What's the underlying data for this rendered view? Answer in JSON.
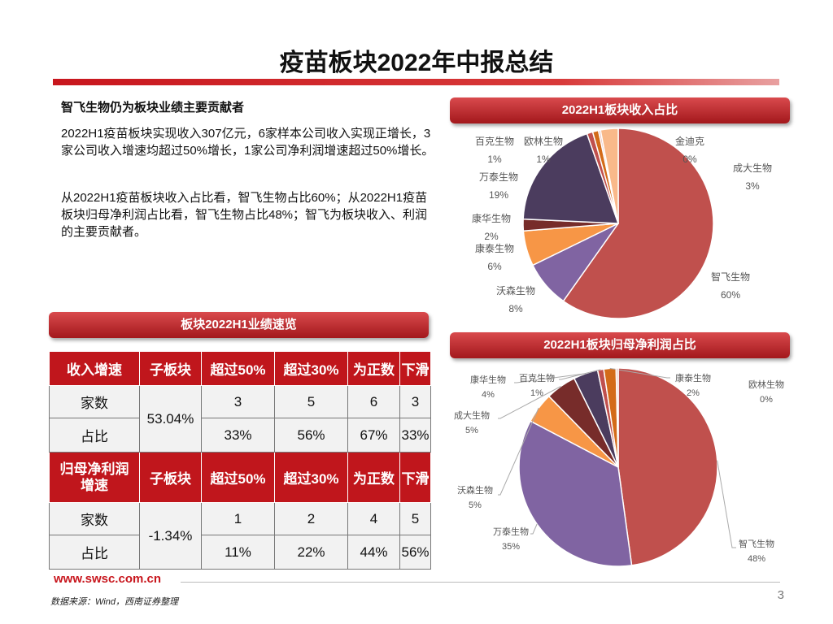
{
  "page": {
    "title": "疫苗板块2022年中报总结",
    "left_heading": "智飞生物仍为板块业绩主要贡献者",
    "paragraph1": "2022H1疫苗板块实现收入307亿元，6家样本公司收入实现正增长，3家公司收入增速均超过50%增长，1家公司净利润增速超过50%增长。",
    "paragraph2": "从2022H1疫苗板块收入占比看，智飞生物占比60%；从2022H1疫苗板块归母净利润占比看，智飞生物占比48%；智飞为板块收入、利润的主要贡献者。",
    "website": "www.swsc.com.cn",
    "source": "数据来源：Wind，西南证券整理",
    "page_number": "3"
  },
  "performance_table": {
    "title": "板块2022H1业绩速览",
    "revenue_header": [
      "收入增速",
      "子板块",
      "超过50%",
      "超过30%",
      "为正数",
      "下滑"
    ],
    "revenue_subboard": "53.04%",
    "revenue_rows": [
      {
        "label": "家数",
        "values": [
          "3",
          "5",
          "6",
          "3"
        ]
      },
      {
        "label": "占比",
        "values": [
          "33%",
          "56%",
          "67%",
          "33%"
        ]
      }
    ],
    "profit_header": [
      "归母净利润增速",
      "子板块",
      "超过50%",
      "超过30%",
      "为正数",
      "下滑"
    ],
    "profit_subboard": "-1.34%",
    "profit_rows": [
      {
        "label": "家数",
        "values": [
          "1",
          "2",
          "4",
          "5"
        ]
      },
      {
        "label": "占比",
        "values": [
          "11%",
          "22%",
          "44%",
          "56%"
        ]
      }
    ]
  },
  "chart_data": [
    {
      "type": "pie",
      "title": "2022H1板块收入占比",
      "slices": [
        {
          "name": "智飞生物",
          "value": 60,
          "label": "60%",
          "color": "#c0504d"
        },
        {
          "name": "沃森生物",
          "value": 8,
          "label": "8%",
          "color": "#8064a2"
        },
        {
          "name": "康泰生物",
          "value": 6,
          "label": "6%",
          "color": "#f79646"
        },
        {
          "name": "康华生物",
          "value": 2,
          "label": "2%",
          "color": "#772c2a"
        },
        {
          "name": "万泰生物",
          "value": 19,
          "label": "19%",
          "color": "#4b3c5e"
        },
        {
          "name": "百克生物",
          "value": 1,
          "label": "1%",
          "color": "#c0504d"
        },
        {
          "name": "欧林生物",
          "value": 1,
          "label": "1%",
          "color": "#d36b19"
        },
        {
          "name": "金迪克",
          "value": 0,
          "label": "0%",
          "color": "#e6b9b8"
        },
        {
          "name": "成大生物",
          "value": 3,
          "label": "3%",
          "color": "#f9b98a"
        }
      ]
    },
    {
      "type": "pie",
      "title": "2022H1板块归母净利润占比",
      "slices": [
        {
          "name": "智飞生物",
          "value": 48,
          "label": "48%",
          "color": "#c0504d"
        },
        {
          "name": "万泰生物",
          "value": 35,
          "label": "35%",
          "color": "#8064a2"
        },
        {
          "name": "沃森生物",
          "value": 5,
          "label": "5%",
          "color": "#f79646"
        },
        {
          "name": "成大生物",
          "value": 5,
          "label": "5%",
          "color": "#772c2a"
        },
        {
          "name": "康华生物",
          "value": 4,
          "label": "4%",
          "color": "#4b3c5e"
        },
        {
          "name": "百克生物",
          "value": 1,
          "label": "1%",
          "color": "#c0504d"
        },
        {
          "name": "康泰生物",
          "value": 2,
          "label": "2%",
          "color": "#d36b19"
        },
        {
          "name": "欧林生物",
          "value": 0,
          "label": "0%",
          "color": "#e6b9b8"
        }
      ]
    }
  ]
}
